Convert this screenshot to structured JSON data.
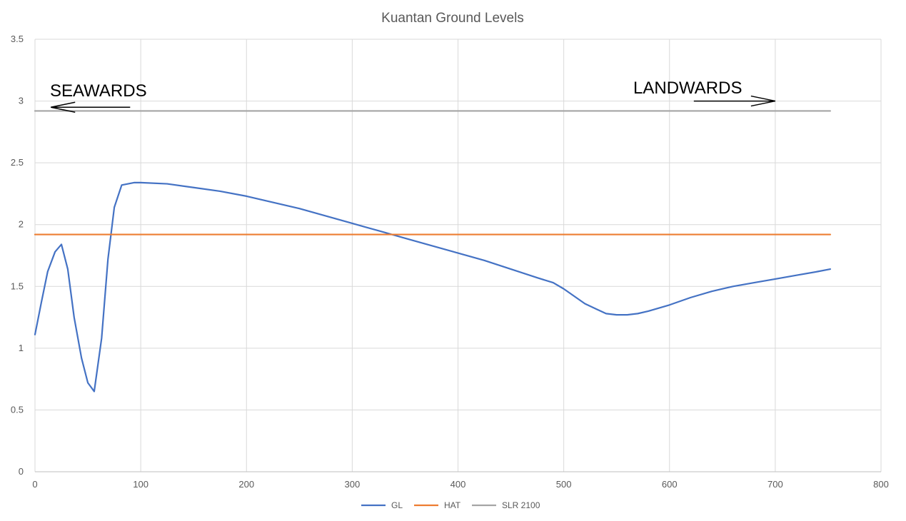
{
  "chart_data": {
    "type": "line",
    "title": "Kuantan Ground Levels",
    "xlabel": "",
    "ylabel": "",
    "xlim": [
      0,
      800
    ],
    "ylim": [
      0,
      3.5
    ],
    "x_ticks": [
      0,
      100,
      200,
      300,
      400,
      500,
      600,
      700,
      800
    ],
    "y_ticks": [
      0,
      0.5,
      1,
      1.5,
      2,
      2.5,
      3,
      3.5
    ],
    "x_tick_labels": [
      "0",
      "100",
      "200",
      "300",
      "400",
      "500",
      "600",
      "700",
      "800"
    ],
    "y_tick_labels": [
      "0",
      "0.5",
      "1",
      "1.5",
      "2",
      "2.5",
      "3",
      "3.5"
    ],
    "grid": true,
    "legend_position": "bottom",
    "series": [
      {
        "name": "GL",
        "color": "#4472c4",
        "x": [
          0,
          6,
          12,
          19,
          25,
          31,
          37,
          44,
          50,
          56,
          63,
          69,
          75,
          82,
          88,
          94,
          100,
          125,
          150,
          175,
          200,
          225,
          250,
          275,
          300,
          325,
          350,
          375,
          400,
          425,
          450,
          475,
          490,
          500,
          510,
          520,
          530,
          540,
          550,
          560,
          570,
          580,
          600,
          620,
          640,
          660,
          680,
          700,
          720,
          740,
          752
        ],
        "y": [
          1.11,
          1.37,
          1.62,
          1.78,
          1.84,
          1.64,
          1.25,
          0.92,
          0.72,
          0.65,
          1.08,
          1.72,
          2.14,
          2.32,
          2.33,
          2.34,
          2.34,
          2.33,
          2.3,
          2.27,
          2.23,
          2.18,
          2.13,
          2.07,
          2.01,
          1.95,
          1.89,
          1.83,
          1.77,
          1.71,
          1.64,
          1.57,
          1.53,
          1.48,
          1.42,
          1.36,
          1.32,
          1.28,
          1.27,
          1.27,
          1.28,
          1.3,
          1.35,
          1.41,
          1.46,
          1.5,
          1.53,
          1.56,
          1.59,
          1.62,
          1.64
        ]
      },
      {
        "name": "HAT",
        "color": "#ed7d31",
        "x": [
          0,
          752
        ],
        "y": [
          1.92,
          1.92
        ]
      },
      {
        "name": "SLR 2100",
        "color": "#a5a5a5",
        "x": [
          0,
          752
        ],
        "y": [
          2.92,
          2.92
        ]
      }
    ],
    "annotations": [
      {
        "text": "SEAWARDS",
        "arrow_direction": "left",
        "arrow_x_from": 90,
        "arrow_x_to": 15,
        "arrow_y": 2.95
      },
      {
        "text": "LANDWARDS",
        "arrow_direction": "right",
        "arrow_x_from": 623,
        "arrow_x_to": 700,
        "arrow_y": 3.0
      }
    ]
  }
}
